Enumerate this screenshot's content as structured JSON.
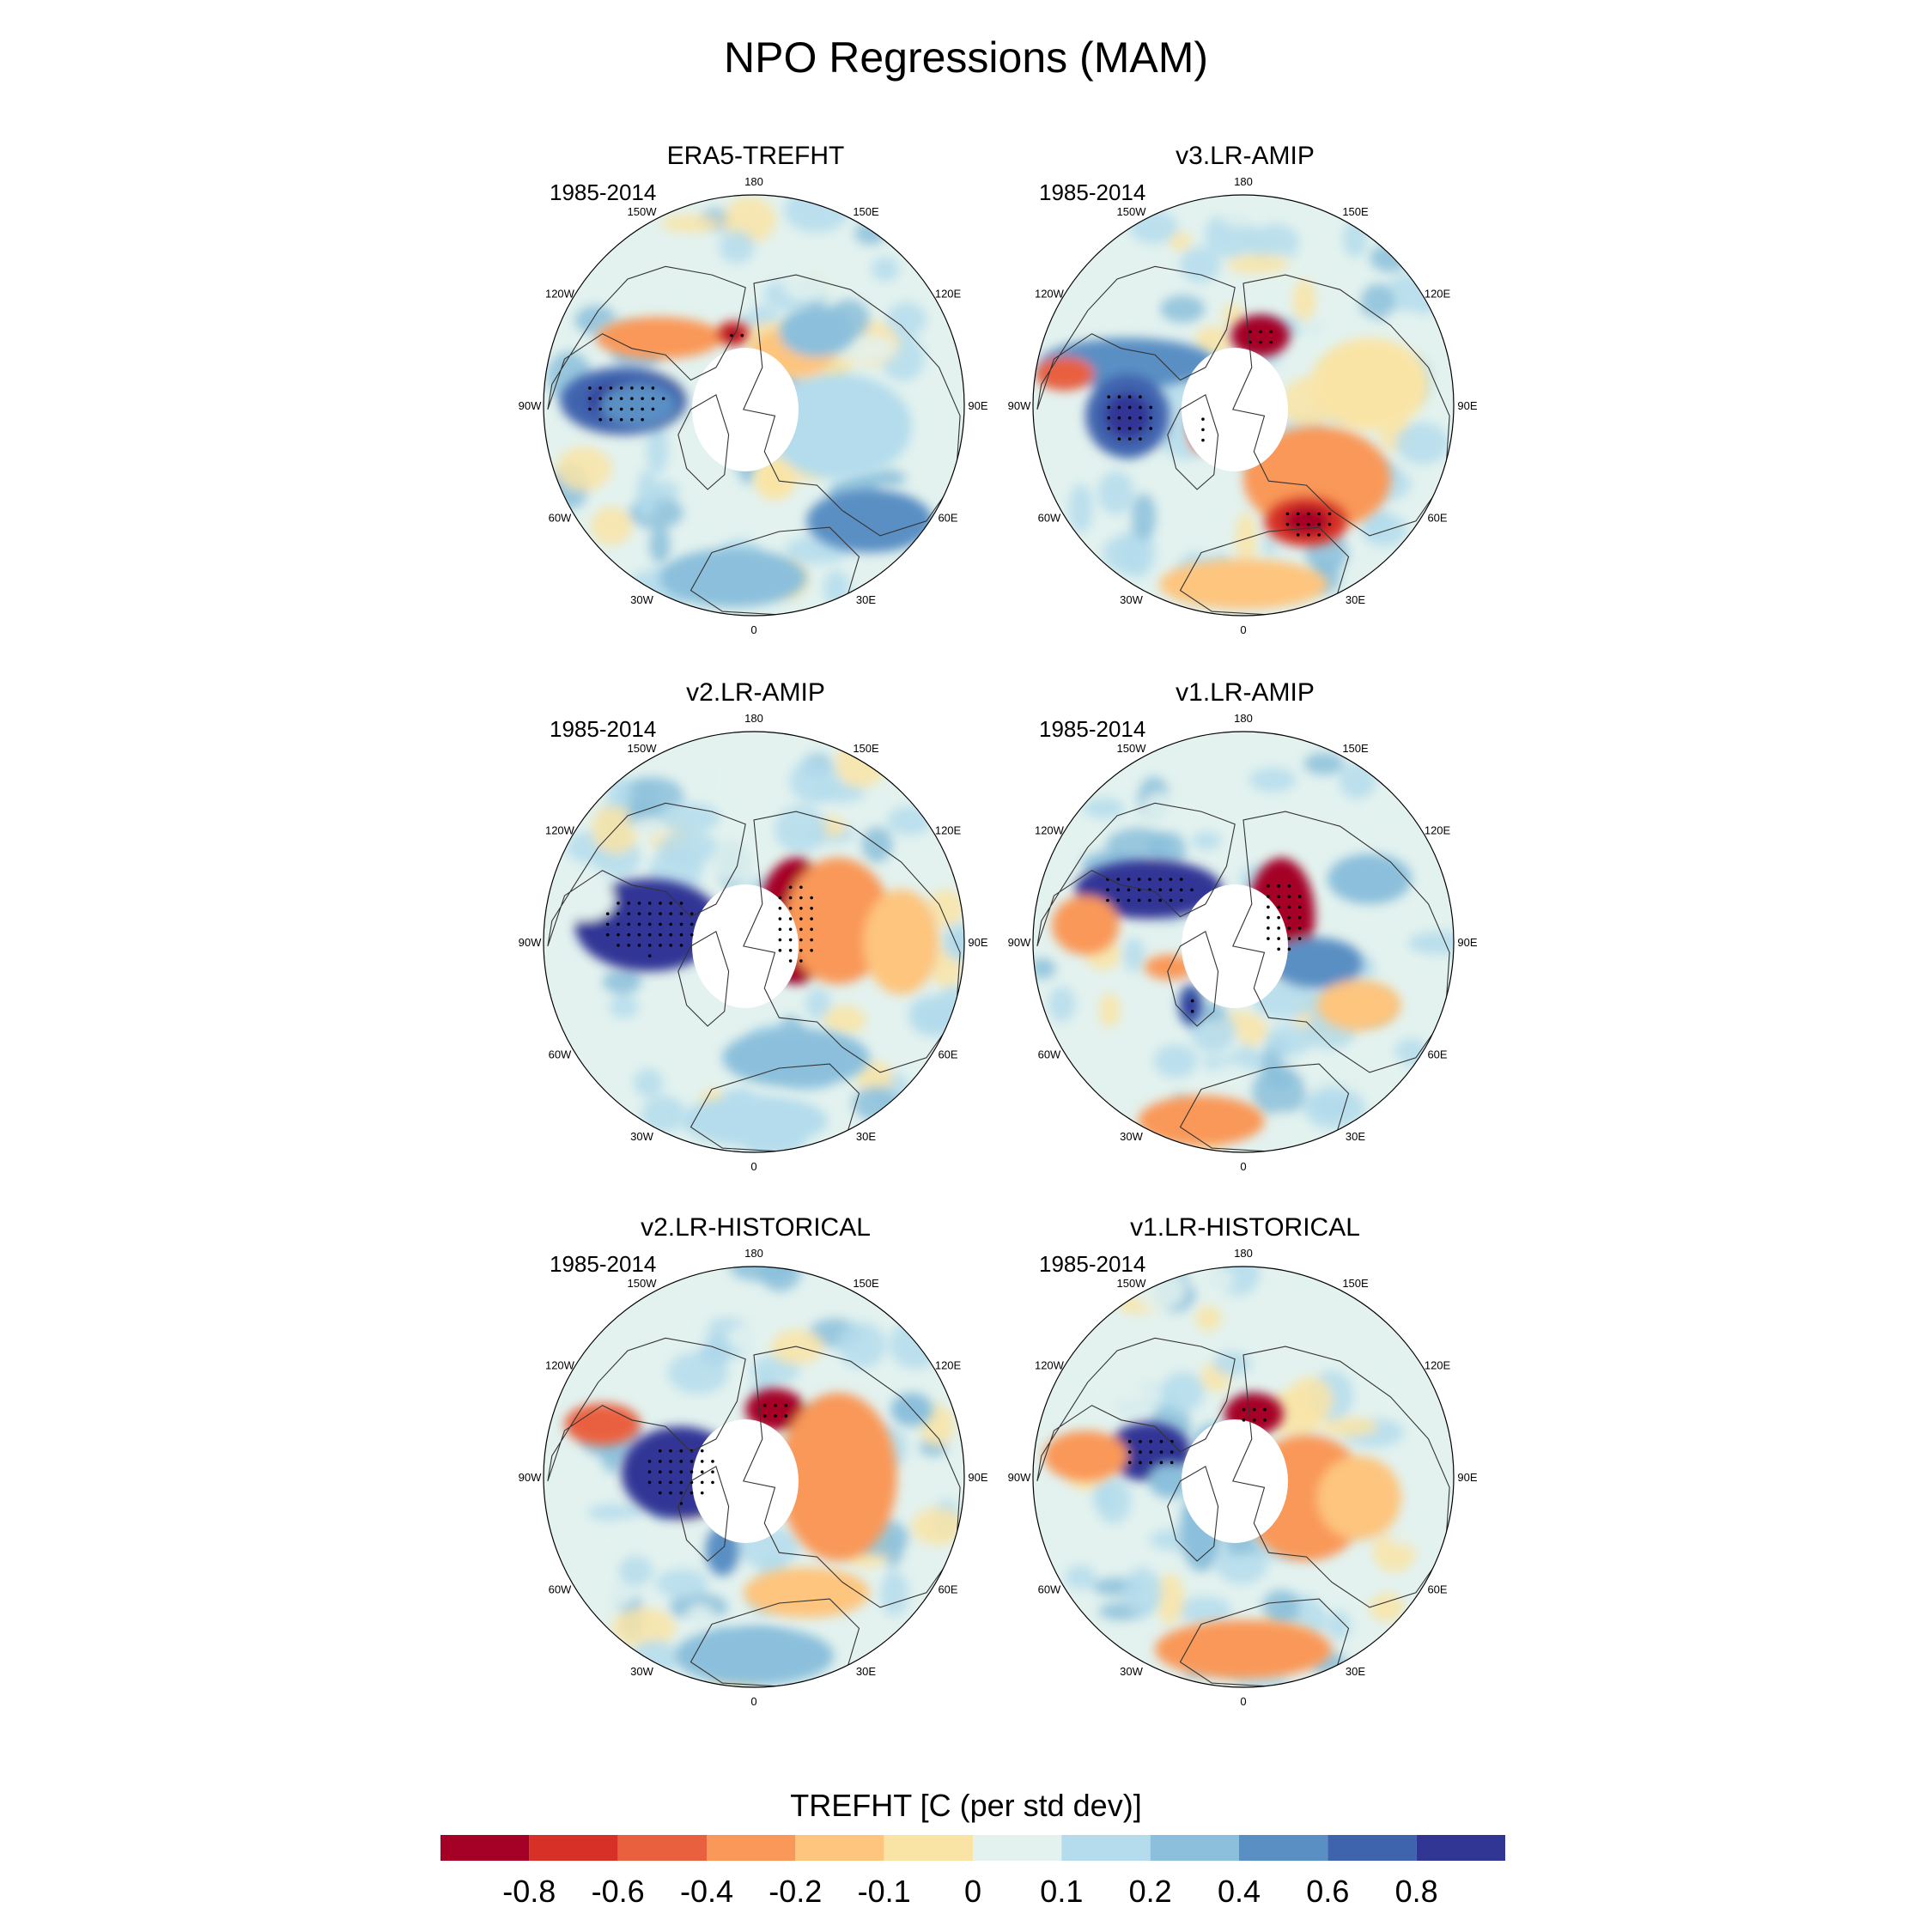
{
  "title": "NPO Regressions (MAM)",
  "chart_data": {
    "type": "heatmap",
    "projection": "north polar stereographic",
    "grid": true,
    "legend_placement": "bottom",
    "longitude_labels": [
      "180",
      "150E",
      "120E",
      "90E",
      "60E",
      "30E",
      "0",
      "30W",
      "60W",
      "90W",
      "120W",
      "150W"
    ],
    "panels": [
      {
        "title": "ERA5-TREFHT",
        "period": "1985-2014"
      },
      {
        "title": "v3.LR-AMIP",
        "period": "1985-2014"
      },
      {
        "title": "v2.LR-AMIP",
        "period": "1985-2014"
      },
      {
        "title": "v1.LR-AMIP",
        "period": "1985-2014"
      },
      {
        "title": "v2.LR-HISTORICAL",
        "period": "1985-2014"
      },
      {
        "title": "v1.LR-HISTORICAL",
        "period": "1985-2014"
      }
    ],
    "colorbar": {
      "title": "TREFHT [C (per std dev)]",
      "tick_labels": [
        "-0.8",
        "-0.6",
        "-0.4",
        "-0.2",
        "-0.1",
        "0",
        "0.1",
        "0.2",
        "0.4",
        "0.6",
        "0.8"
      ],
      "colors": [
        "#a50026",
        "#d73027",
        "#e9603f",
        "#f99858",
        "#fdc57e",
        "#f9e4a6",
        "#e3f2ef",
        "#b4dcec",
        "#8bbfdb",
        "#5a8fc4",
        "#3f64ae",
        "#313695"
      ]
    }
  }
}
